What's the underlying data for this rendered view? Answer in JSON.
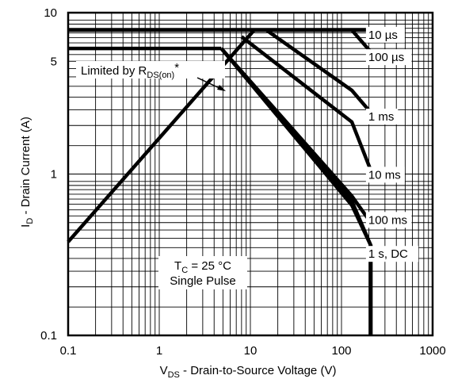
{
  "chart_data": {
    "type": "line",
    "title": "",
    "xlabel": {
      "main": "V",
      "sub": "DS",
      "rest": " - Drain-to-Source Voltage (V)"
    },
    "ylabel": {
      "main": "I",
      "sub": "D",
      "rest": " - Drain Current (A)"
    },
    "xscale": "log",
    "yscale": "log",
    "xlim": [
      0.1,
      1000
    ],
    "ylim": [
      0.1,
      10
    ],
    "grid": true,
    "x_ticks": [
      "0.1",
      "1",
      "10",
      "100",
      "1000"
    ],
    "y_ticks": [
      "0.1",
      "1",
      "5",
      "10"
    ],
    "series": [
      {
        "name": "10 µs",
        "points": [
          [
            11,
            7.8
          ],
          [
            130,
            7.8
          ],
          [
            150,
            7.1
          ],
          [
            210,
            5.7
          ]
        ]
      },
      {
        "name": "100 µs",
        "points": [
          [
            15,
            7.8
          ],
          [
            130,
            3.3
          ],
          [
            210,
            2.4
          ]
        ]
      },
      {
        "name": "1 ms",
        "points": [
          [
            8,
            7.1
          ],
          [
            130,
            2.1
          ],
          [
            210,
            1.05
          ]
        ]
      },
      {
        "name": "10 ms",
        "points": [
          [
            4.8,
            6.0
          ],
          [
            130,
            0.73
          ],
          [
            210,
            0.5
          ]
        ]
      },
      {
        "name": "100 ms",
        "points": [
          [
            4.8,
            6.0
          ],
          [
            130,
            0.68
          ],
          [
            210,
            0.36
          ]
        ]
      },
      {
        "name": "1 s, DC",
        "points": [
          [
            4.8,
            6.0
          ],
          [
            130,
            0.64
          ],
          [
            210,
            0.36
          ],
          [
            210,
            0.1
          ]
        ]
      },
      {
        "name": "Limited by RDS(on)*",
        "points": [
          [
            0.1,
            0.38
          ],
          [
            11,
            7.8
          ]
        ]
      }
    ],
    "limits": [
      {
        "name": "10 µs current limit",
        "points": [
          [
            0.1,
            7.8
          ],
          [
            210,
            7.8
          ]
        ]
      },
      {
        "name": "DC current limit",
        "points": [
          [
            0.1,
            6.0
          ],
          [
            4.8,
            6.0
          ]
        ]
      }
    ],
    "curve_labels": [
      {
        "text": "10 µs",
        "at": [
          300,
          7.3
        ]
      },
      {
        "text": "100 µs",
        "at": [
          300,
          5.3
        ]
      },
      {
        "text": "1 ms",
        "at": [
          300,
          2.27
        ]
      },
      {
        "text": "10 ms",
        "at": [
          300,
          0.99
        ]
      },
      {
        "text": "100 ms",
        "at": [
          300,
          0.52
        ]
      },
      {
        "text": "1 s, DC",
        "at": [
          300,
          0.32
        ]
      }
    ],
    "annotations": {
      "rds_label": {
        "main": "Limited by R",
        "sub": "DS(on)",
        "rest": "*"
      },
      "tc_label": {
        "main": "T",
        "sub": "C",
        "rest": " = 25 °C"
      },
      "pulse_label": "Single Pulse"
    }
  }
}
